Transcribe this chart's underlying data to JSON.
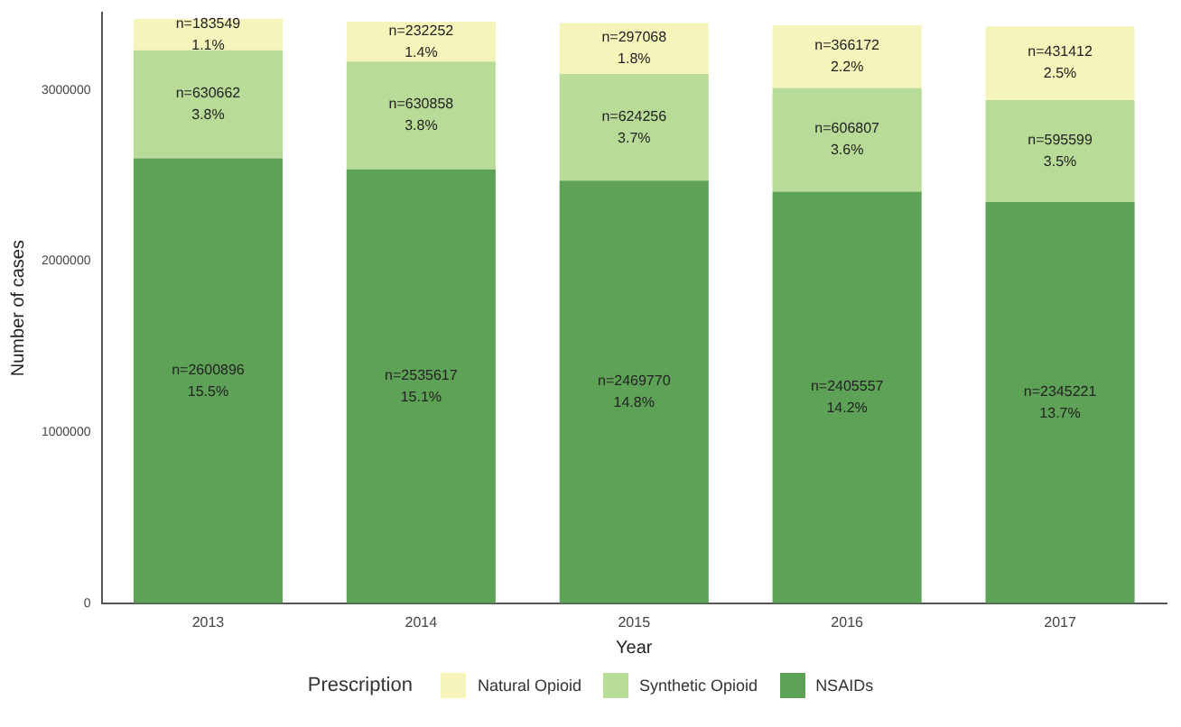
{
  "chart_data": {
    "type": "bar",
    "stacked": true,
    "xlabel": "Year",
    "ylabel": "Number of cases",
    "legend_title": "Prescription",
    "legend": "bottom",
    "grid": false,
    "categories": [
      "2013",
      "2014",
      "2015",
      "2016",
      "2017"
    ],
    "ylim": [
      0,
      3450000
    ],
    "yticks": [
      0,
      1000000,
      2000000,
      3000000
    ],
    "series": [
      {
        "name": "NSAIDs",
        "color": "#5ea257",
        "values": [
          2600896,
          2535617,
          2469770,
          2405557,
          2345221
        ],
        "value_labels": [
          "n=2600896\n15.5%",
          "n=2535617\n15.1%",
          "n=2469770\n14.8%",
          "n=2405557\n14.2%",
          "n=2345221\n13.7%"
        ]
      },
      {
        "name": "Synthetic Opioid",
        "color": "#b8db98",
        "values": [
          630662,
          630858,
          624256,
          606807,
          595599
        ],
        "value_labels": [
          "n=630662\n3.8%",
          "n=630858\n3.8%",
          "n=624256\n3.7%",
          "n=606807\n3.6%",
          "n=595599\n3.5%"
        ]
      },
      {
        "name": "Natural Opioid",
        "color": "#f5f5bb",
        "values": [
          183549,
          232252,
          297068,
          366172,
          431412
        ],
        "value_labels": [
          "n=183549\n1.1%",
          "n=232252\n1.4%",
          "n=297068\n1.8%",
          "n=366172\n2.2%",
          "n=431412\n2.5%"
        ]
      }
    ]
  }
}
